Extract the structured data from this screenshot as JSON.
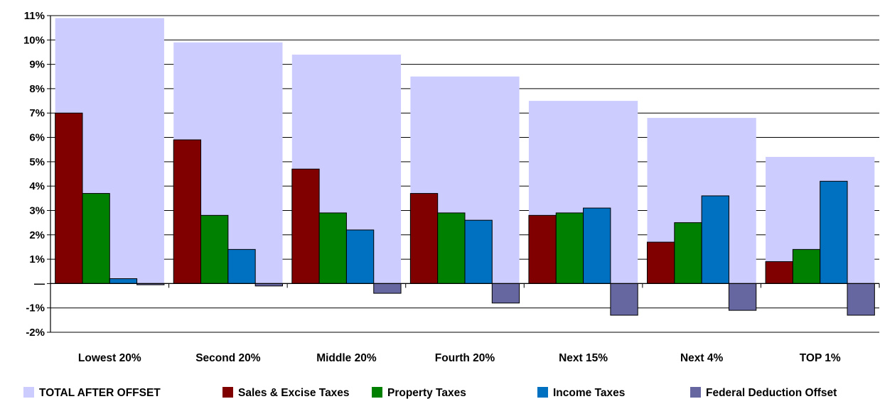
{
  "chart_data": {
    "type": "bar",
    "categories": [
      "Lowest 20%",
      "Second 20%",
      "Middle 20%",
      "Fourth 20%",
      "Next 15%",
      "Next 4%",
      "TOP 1%"
    ],
    "background_series": {
      "name": "TOTAL AFTER OFFSET",
      "color": "#ccccff",
      "values": [
        10.9,
        9.9,
        9.4,
        8.5,
        7.5,
        6.8,
        5.2
      ]
    },
    "series": [
      {
        "name": "Sales & Excise Taxes",
        "color": "#800000",
        "values": [
          7.0,
          5.9,
          4.7,
          3.7,
          2.8,
          1.7,
          0.9
        ]
      },
      {
        "name": "Property Taxes",
        "color": "#008000",
        "values": [
          3.7,
          2.8,
          2.9,
          2.9,
          2.9,
          2.5,
          1.4
        ]
      },
      {
        "name": "Income Taxes",
        "color": "#0070c0",
        "values": [
          0.2,
          1.4,
          2.2,
          2.6,
          3.1,
          3.6,
          4.2
        ]
      },
      {
        "name": "Federal Deduction Offset",
        "color": "#6666a0",
        "values": [
          -0.05,
          -0.1,
          -0.4,
          -0.8,
          -1.3,
          -1.1,
          -1.3
        ]
      }
    ],
    "y_ticks": [
      {
        "value": 11,
        "label": "11%"
      },
      {
        "value": 10,
        "label": "10%"
      },
      {
        "value": 9,
        "label": "9%"
      },
      {
        "value": 8,
        "label": "8%"
      },
      {
        "value": 7,
        "label": "7%"
      },
      {
        "value": 6,
        "label": "6%"
      },
      {
        "value": 5,
        "label": "5%"
      },
      {
        "value": 4,
        "label": "4%"
      },
      {
        "value": 3,
        "label": "3%"
      },
      {
        "value": 2,
        "label": "2%"
      },
      {
        "value": 1,
        "label": "1%"
      },
      {
        "value": 0,
        "label": "—"
      },
      {
        "value": -1,
        "label": "-1%"
      },
      {
        "value": -2,
        "label": "-2%"
      }
    ],
    "ylim": [
      -2,
      11
    ],
    "grid": true,
    "legend_position": "bottom",
    "title": "",
    "xlabel": "",
    "ylabel": ""
  }
}
